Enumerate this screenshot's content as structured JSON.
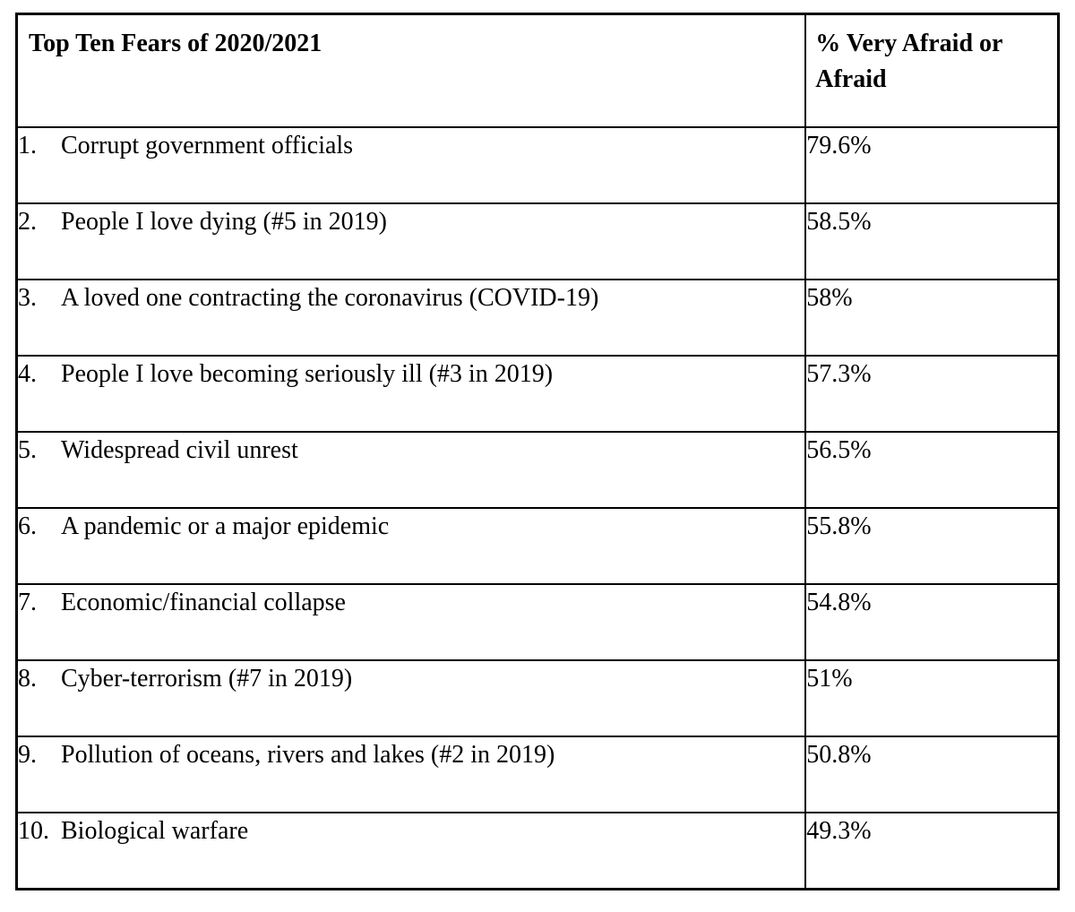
{
  "table": {
    "title": "Top Ten Fears of 2020/2021",
    "value_header": "% Very Afraid or Afraid",
    "rows": [
      {
        "num": "1.",
        "label": "Corrupt government officials",
        "value": "79.6%"
      },
      {
        "num": "2.",
        "label": "People I love dying (#5 in 2019)",
        "value": "58.5%"
      },
      {
        "num": "3.",
        "label": "A loved one contracting the coronavirus (COVID-19)",
        "value": "58%"
      },
      {
        "num": "4.",
        "label": "People I love becoming seriously ill (#3 in 2019)",
        "value": "57.3%"
      },
      {
        "num": "5.",
        "label": "Widespread civil unrest",
        "value": "56.5%"
      },
      {
        "num": "6.",
        "label": "A pandemic or a major epidemic",
        "value": "55.8%"
      },
      {
        "num": "7.",
        "label": "Economic/financial collapse",
        "value": "54.8%"
      },
      {
        "num": "8.",
        "label": "Cyber-terrorism (#7 in 2019)",
        "value": "51%"
      },
      {
        "num": "9.",
        "label": "Pollution of oceans, rivers and lakes (#2 in 2019)",
        "value": "50.8%"
      },
      {
        "num": "10.",
        "label": "Biological warfare",
        "value": "49.3%"
      }
    ]
  },
  "chart_data": {
    "type": "table",
    "title": "Top Ten Fears of 2020/2021",
    "columns": [
      "Top Ten Fears of 2020/2021",
      "% Very Afraid or Afraid"
    ],
    "categories": [
      "Corrupt government officials",
      "People I love dying (#5 in 2019)",
      "A loved one contracting the coronavirus (COVID-19)",
      "People I love becoming seriously ill (#3 in 2019)",
      "Widespread civil unrest",
      "A pandemic or a major epidemic",
      "Economic/financial collapse",
      "Cyber-terrorism (#7 in 2019)",
      "Pollution of oceans, rivers and lakes (#2 in 2019)",
      "Biological warfare"
    ],
    "values": [
      79.6,
      58.5,
      58,
      57.3,
      56.5,
      55.8,
      54.8,
      51,
      50.8,
      49.3
    ]
  },
  "colors": {
    "border": "#000000",
    "background": "#ffffff",
    "text": "#000000"
  }
}
